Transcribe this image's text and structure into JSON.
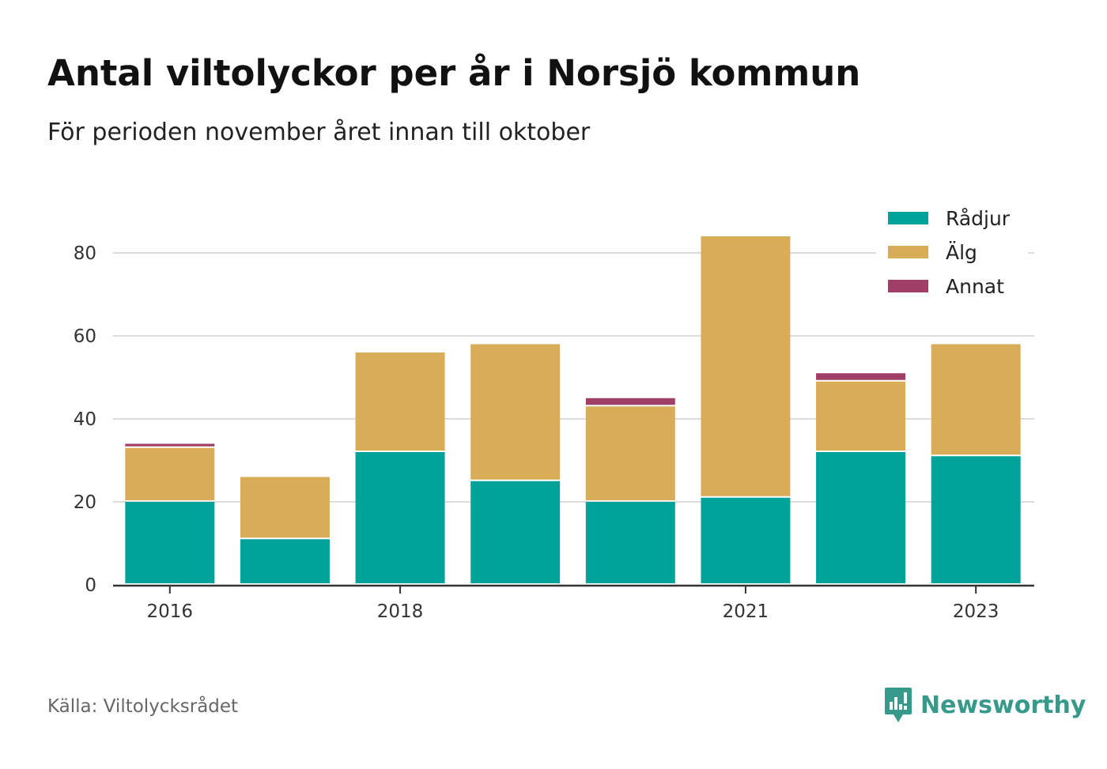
{
  "title": "Antal viltolyckor per år i Norsjö kommun",
  "subtitle": "För perioden november året innan till oktober",
  "source": "Källa: Viltolycksrådet",
  "brand": {
    "name": "Newsworthy",
    "icon": "newsworthy-logo-icon",
    "color": "#37998a"
  },
  "chart_data": {
    "type": "bar",
    "stacked": true,
    "categories": [
      "2016",
      "2017",
      "2018",
      "2019",
      "2020",
      "2021",
      "2022",
      "2023"
    ],
    "x_tick_labels": [
      "2016",
      "2018",
      "2021",
      "2023"
    ],
    "series": [
      {
        "name": "Rådjur",
        "color": "#00a39a",
        "values": [
          20,
          11,
          32,
          25,
          20,
          21,
          32,
          31
        ]
      },
      {
        "name": "Älg",
        "color": "#d9ac58",
        "values": [
          13,
          15,
          24,
          33,
          23,
          63,
          17,
          27
        ]
      },
      {
        "name": "Annat",
        "color": "#a03f67",
        "values": [
          1,
          0,
          0,
          0,
          2,
          0,
          2,
          0
        ]
      }
    ],
    "y_ticks": [
      0,
      20,
      40,
      60,
      80
    ],
    "ylim": [
      0,
      90
    ],
    "grid": true,
    "legend_position": "top-right"
  }
}
